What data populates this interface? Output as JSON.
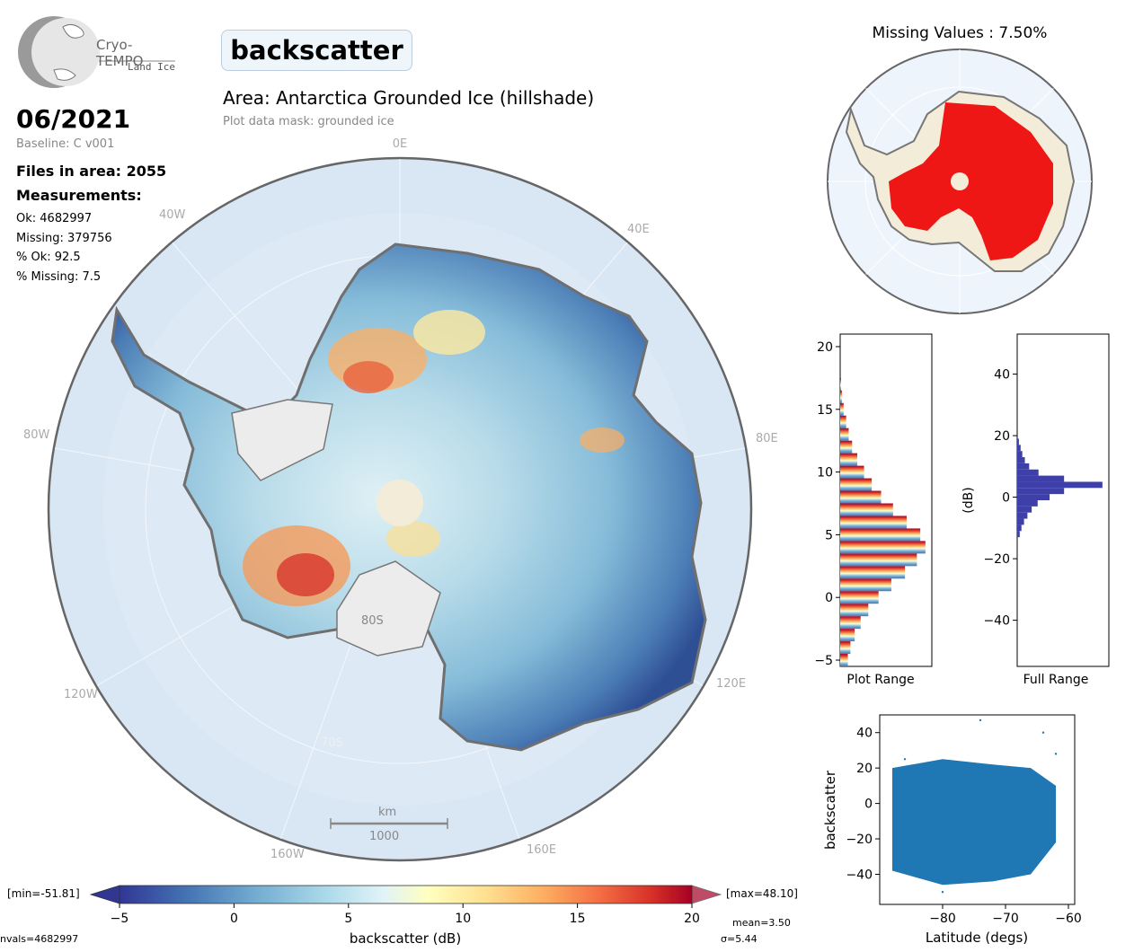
{
  "header": {
    "logo_title": "Cryo-TEMPO",
    "logo_subtitle": "Land Ice",
    "parameter": "backscatter",
    "month": "06/2021",
    "baseline": "Baseline: C v001",
    "files_in_area": "Files in area: 2055",
    "measurements_label": "Measurements:",
    "stats": [
      "Ok: 4682997",
      "Missing: 379756",
      "% Ok: 92.5",
      "% Missing: 7.5"
    ],
    "area": "Area: Antarctica Grounded Ice (hillshade)",
    "mask": "Plot data mask: grounded ice"
  },
  "colors": {
    "ocean": "#d9e6f4",
    "ice_shelf": "#eeeeee",
    "coast": "#777777",
    "missing": "#ee0000",
    "land": "#f3ecd8",
    "hist_full": "#3f3faa",
    "scatter": "#1f77b4"
  },
  "chart_data": [
    {
      "type": "heatmap",
      "title": "",
      "map": "Antarctica polar stereographic",
      "grid_labels": [
        "0E",
        "40E",
        "80E",
        "120E",
        "160E",
        "160W",
        "120W",
        "80W",
        "40W",
        "70S",
        "80S"
      ],
      "scale_bar": {
        "unit": "km",
        "value": "1000"
      },
      "colorbar": {
        "label": "backscatter (dB)",
        "ticks": [
          -5,
          0,
          5,
          10,
          15,
          20
        ],
        "range": [
          -5,
          20
        ],
        "colormap": "RdYlBu_r",
        "min_label": "[min=-51.81]",
        "max_label": "[max=48.10]",
        "nvals_label": "nvals=4682997",
        "mean_label": "mean=3.50",
        "sigma_label": "σ=5.44"
      }
    },
    {
      "type": "heatmap",
      "title": "Missing Values : 7.50%",
      "value": 7.5
    },
    {
      "type": "bar",
      "title": "",
      "xlabel": "Plot Range",
      "ylabel": "",
      "orientation": "horizontal",
      "ylim": [
        -5.5,
        21
      ],
      "yticks": [
        -5,
        0,
        5,
        10,
        15,
        20
      ],
      "bins_y": [
        -5,
        -4,
        -3,
        -2,
        -1,
        0,
        1,
        2,
        3,
        4,
        5,
        6,
        7,
        8,
        9,
        10,
        11,
        12,
        13,
        14,
        15,
        16,
        17
      ],
      "values": [
        0.09,
        0.12,
        0.17,
        0.24,
        0.33,
        0.45,
        0.6,
        0.76,
        0.9,
        1.0,
        0.94,
        0.78,
        0.62,
        0.48,
        0.37,
        0.28,
        0.2,
        0.14,
        0.1,
        0.07,
        0.04,
        0.02,
        0.01
      ]
    },
    {
      "type": "bar",
      "title": "",
      "xlabel": "Full Range",
      "ylabel": "(dB)",
      "orientation": "horizontal",
      "ylim": [
        -55,
        53
      ],
      "yticks": [
        -40,
        -20,
        0,
        20,
        40
      ],
      "bins_y": [
        -12,
        -10,
        -8,
        -6,
        -4,
        -2,
        0,
        2,
        4,
        6,
        8,
        10,
        12,
        14,
        16,
        18
      ],
      "values": [
        0.03,
        0.05,
        0.08,
        0.12,
        0.17,
        0.24,
        0.38,
        0.55,
        1.0,
        0.55,
        0.25,
        0.14,
        0.09,
        0.06,
        0.04,
        0.02
      ]
    },
    {
      "type": "scatter",
      "title": "",
      "xlabel": "Latitude (degs)",
      "ylabel": "backscatter",
      "xlim": [
        -90,
        -59
      ],
      "ylim": [
        -57,
        50
      ],
      "xticks": [
        -80,
        -70,
        -60
      ],
      "yticks": [
        -40,
        -20,
        0,
        20,
        40
      ],
      "envelope": [
        {
          "x": -88,
          "lo": -38,
          "hi": 20
        },
        {
          "x": -80,
          "lo": -46,
          "hi": 25
        },
        {
          "x": -72,
          "lo": -44,
          "hi": 22
        },
        {
          "x": -66,
          "lo": -40,
          "hi": 20
        },
        {
          "x": -62,
          "lo": -22,
          "hi": 10
        }
      ],
      "outliers": [
        [
          -80,
          -50
        ],
        [
          -74,
          47
        ],
        [
          -64,
          40
        ],
        [
          -62,
          28
        ],
        [
          -86,
          25
        ]
      ]
    }
  ]
}
